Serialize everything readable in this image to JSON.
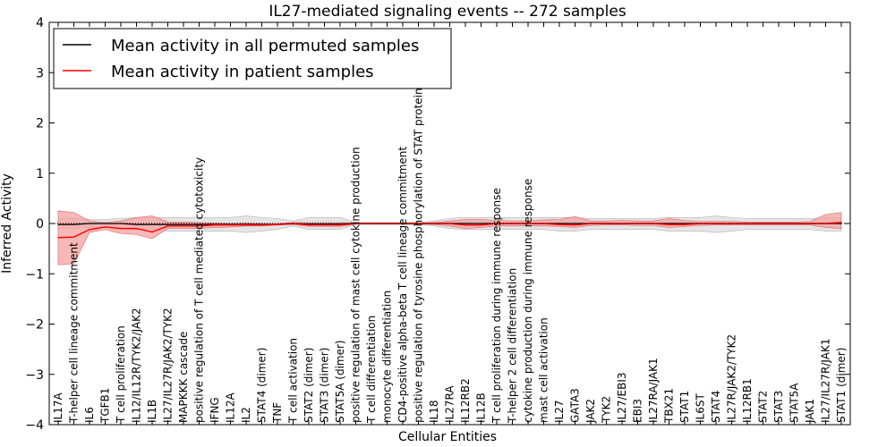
{
  "chart_data": {
    "type": "line",
    "title": "IL27-mediated signaling events -- 272 samples",
    "xlabel": "Cellular Entities",
    "ylabel": "Inferred Activity",
    "ylim": [
      -4,
      4
    ],
    "yticks": [
      -4,
      -3,
      -2,
      -1,
      0,
      1,
      2,
      3,
      4
    ],
    "legend_position": "top-left",
    "categories": [
      "IL17A",
      "T-helper cell lineage commitment",
      "IL6",
      "TGFB1",
      "T cell proliferation",
      "IL12/IL12R/TYK2/JAK2",
      "IL1B",
      "IL27/IL27R/JAK2/TYK2",
      "MAPKKK cascade",
      "positive regulation of T cell mediated cytotoxicity",
      "IFNG",
      "IL12A",
      "IL2",
      "STAT4 (dimer)",
      "TNF",
      "T cell activation",
      "STAT2 (dimer)",
      "STAT3 (dimer)",
      "STAT5A (dimer)",
      "positive regulation of mast cell cytokine production",
      "T cell differentiation",
      "monocyte differentiation",
      "CD4-positive alpha-beta T cell lineage commitment",
      "positive regulation of tyrosine phosphorylation of STAT protein",
      "IL18",
      "IL27RA",
      "IL12RB2",
      "IL12B",
      "T cell proliferation during immune response",
      "T-helper 2 cell differentiation",
      "cytokine production during immune response",
      "mast cell activation",
      "IL27",
      "GATA3",
      "JAK2",
      "TYK2",
      "IL27/EBI3",
      "EBI3",
      "IL27RA/JAK1",
      "TBX21",
      "STAT1",
      "IL6ST",
      "STAT4",
      "IL27R/JAK2/TYK2",
      "IL12RB1",
      "STAT2",
      "STAT3",
      "STAT5A",
      "JAK1",
      "IL27/IL27R/JAK1",
      "STAT1 (dimer)"
    ],
    "series": [
      {
        "name": "Mean activity in all permuted samples",
        "color": "#000000",
        "values": [
          -0.02,
          -0.02,
          0.0,
          0.0,
          0.0,
          -0.02,
          -0.02,
          -0.02,
          -0.02,
          -0.02,
          -0.02,
          -0.02,
          -0.02,
          -0.02,
          -0.02,
          0.0,
          -0.01,
          -0.01,
          -0.01,
          0.0,
          0.0,
          0.0,
          0.0,
          0.0,
          0.0,
          0.0,
          0.0,
          0.0,
          0.0,
          0.0,
          0.0,
          0.0,
          0.0,
          0.0,
          0.0,
          0.0,
          0.0,
          0.0,
          0.0,
          0.0,
          0.0,
          0.0,
          0.0,
          0.0,
          0.0,
          0.0,
          0.0,
          0.0,
          0.0,
          0.0,
          0.0
        ],
        "lower": [
          -0.1,
          -0.1,
          -0.08,
          -0.08,
          -0.1,
          -0.12,
          -0.12,
          -0.15,
          -0.15,
          -0.15,
          -0.15,
          -0.15,
          -0.18,
          -0.15,
          -0.12,
          -0.05,
          -0.12,
          -0.12,
          -0.12,
          -0.02,
          -0.02,
          -0.02,
          -0.02,
          -0.02,
          -0.05,
          -0.1,
          -0.12,
          -0.12,
          -0.12,
          -0.12,
          -0.12,
          -0.12,
          -0.15,
          -0.15,
          -0.12,
          -0.12,
          -0.12,
          -0.12,
          -0.12,
          -0.15,
          -0.15,
          -0.15,
          -0.18,
          -0.15,
          -0.12,
          -0.12,
          -0.12,
          -0.12,
          -0.12,
          -0.15,
          -0.15
        ],
        "upper": [
          0.1,
          0.1,
          0.08,
          0.08,
          0.1,
          0.12,
          0.12,
          0.12,
          0.12,
          0.12,
          0.12,
          0.12,
          0.15,
          0.12,
          0.1,
          0.05,
          0.12,
          0.12,
          0.12,
          0.02,
          0.02,
          0.02,
          0.02,
          0.02,
          0.05,
          0.1,
          0.12,
          0.12,
          0.12,
          0.12,
          0.12,
          0.12,
          0.12,
          0.12,
          0.1,
          0.1,
          0.1,
          0.1,
          0.1,
          0.12,
          0.12,
          0.12,
          0.15,
          0.12,
          0.1,
          0.1,
          0.1,
          0.1,
          0.1,
          0.12,
          0.12
        ]
      },
      {
        "name": "Mean activity in patient samples",
        "color": "#ff0000",
        "band_color": "#f4a0a0",
        "values": [
          -0.28,
          -0.27,
          -0.12,
          -0.07,
          -0.1,
          -0.1,
          -0.17,
          -0.05,
          -0.05,
          -0.05,
          -0.03,
          -0.03,
          -0.03,
          -0.03,
          -0.02,
          0.0,
          -0.03,
          -0.03,
          -0.03,
          0.0,
          0.0,
          0.0,
          0.0,
          0.0,
          0.0,
          0.0,
          -0.03,
          -0.03,
          0.0,
          0.0,
          0.0,
          0.0,
          -0.02,
          -0.03,
          0.0,
          0.0,
          0.0,
          0.0,
          0.0,
          -0.02,
          -0.02,
          0.0,
          0.0,
          0.0,
          0.0,
          0.0,
          0.0,
          0.0,
          0.0,
          0.0,
          0.02
        ],
        "lower": [
          -0.82,
          -0.8,
          -0.18,
          -0.12,
          -0.2,
          -0.22,
          -0.3,
          -0.1,
          -0.1,
          -0.1,
          -0.08,
          -0.07,
          -0.05,
          -0.05,
          -0.03,
          -0.02,
          -0.06,
          -0.06,
          -0.06,
          -0.01,
          -0.01,
          -0.01,
          -0.01,
          -0.01,
          -0.02,
          -0.05,
          -0.1,
          -0.08,
          -0.05,
          -0.05,
          -0.05,
          -0.05,
          -0.06,
          -0.08,
          -0.04,
          -0.03,
          -0.03,
          -0.04,
          -0.04,
          -0.08,
          -0.06,
          -0.04,
          -0.03,
          -0.03,
          -0.03,
          -0.03,
          -0.03,
          -0.03,
          -0.03,
          -0.08,
          -0.1
        ],
        "upper": [
          0.25,
          0.22,
          0.05,
          0.02,
          0.05,
          0.12,
          0.15,
          0.03,
          0.03,
          0.02,
          0.01,
          0.0,
          0.01,
          0.0,
          0.0,
          0.02,
          0.02,
          0.02,
          0.02,
          0.01,
          0.01,
          0.01,
          0.01,
          0.01,
          0.02,
          0.05,
          0.08,
          0.08,
          0.06,
          0.05,
          0.05,
          0.07,
          0.08,
          0.14,
          0.05,
          0.05,
          0.06,
          0.05,
          0.05,
          0.1,
          0.06,
          0.04,
          0.04,
          0.04,
          0.03,
          0.03,
          0.03,
          0.03,
          0.04,
          0.18,
          0.22
        ]
      }
    ]
  }
}
